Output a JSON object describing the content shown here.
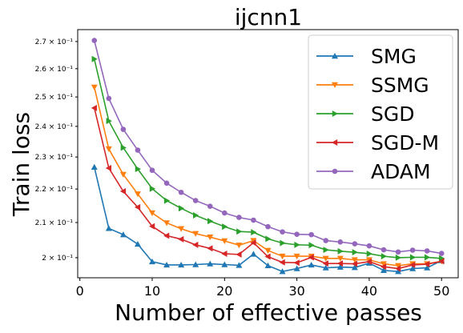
{
  "chart_data": {
    "type": "line",
    "title": "ijcnn1",
    "xlabel": "Number of effective passes",
    "ylabel": "Train loss",
    "yscale": "log",
    "xlim": [
      -0.3,
      52.3
    ],
    "ylim": [
      0.1945,
      0.2745
    ],
    "xticks": [
      0,
      10,
      20,
      30,
      40,
      50
    ],
    "xtick_labels": [
      "0",
      "10",
      "20",
      "30",
      "40",
      "50"
    ],
    "yticks": [
      0.2,
      0.21,
      0.22,
      0.23,
      0.24,
      0.25,
      0.26,
      0.27
    ],
    "ytick_labels": [
      "2 × 10⁻¹",
      "2.1 × 10⁻¹",
      "2.2 × 10⁻¹",
      "2.3 × 10⁻¹",
      "2.4 × 10⁻¹",
      "2.5 × 10⁻¹",
      "2.6 × 10⁻¹",
      "2.7 × 10⁻¹"
    ],
    "grid": false,
    "legend_position": "top-right",
    "x": [
      2,
      4,
      6,
      8,
      10,
      12,
      14,
      16,
      18,
      20,
      22,
      24,
      26,
      28,
      30,
      32,
      34,
      36,
      38,
      40,
      42,
      44,
      46,
      48,
      50
    ],
    "series": [
      {
        "name": "SMG",
        "color": "#1f77b4",
        "marker": "triangle-up",
        "values": [
          0.2268,
          0.2083,
          0.2065,
          0.2038,
          0.1989,
          0.198,
          0.198,
          0.1981,
          0.1983,
          0.1981,
          0.1979,
          0.201,
          0.1978,
          0.1962,
          0.197,
          0.198,
          0.1972,
          0.1974,
          0.1973,
          0.1985,
          0.1965,
          0.1962,
          0.197,
          0.1972,
          0.1992
        ]
      },
      {
        "name": "SSMG",
        "color": "#ff7f0e",
        "marker": "triangle-down",
        "values": [
          0.2534,
          0.2326,
          0.2245,
          0.2185,
          0.2128,
          0.2099,
          0.2082,
          0.2068,
          0.2058,
          0.2047,
          0.2035,
          0.2048,
          0.202,
          0.2004,
          0.2004,
          0.2004,
          0.1998,
          0.1998,
          0.1994,
          0.1994,
          0.1983,
          0.1978,
          0.1983,
          0.1983,
          0.199
        ]
      },
      {
        "name": "SGD",
        "color": "#2ca02c",
        "marker": "triangle-right",
        "values": [
          0.2635,
          0.2418,
          0.233,
          0.2262,
          0.2201,
          0.2165,
          0.2142,
          0.2121,
          0.2104,
          0.2088,
          0.2074,
          0.2072,
          0.2053,
          0.2041,
          0.2036,
          0.2035,
          0.2022,
          0.2018,
          0.2015,
          0.2011,
          0.2004,
          0.2,
          0.2001,
          0.2001,
          0.1998
        ]
      },
      {
        "name": "SGD-M",
        "color": "#d62728",
        "marker": "triangle-left",
        "values": [
          0.2462,
          0.2265,
          0.2193,
          0.2145,
          0.2089,
          0.2062,
          0.2052,
          0.2036,
          0.2026,
          0.2011,
          0.2009,
          0.2042,
          0.2003,
          0.1987,
          0.1986,
          0.2001,
          0.1984,
          0.1984,
          0.1983,
          0.1989,
          0.1975,
          0.197,
          0.198,
          0.1982,
          0.199
        ]
      },
      {
        "name": "ADAM",
        "color": "#9467bd",
        "marker": "circle",
        "values": [
          0.2704,
          0.2495,
          0.239,
          0.2322,
          0.2258,
          0.2218,
          0.219,
          0.2165,
          0.2148,
          0.2128,
          0.2115,
          0.2107,
          0.2088,
          0.2073,
          0.2066,
          0.2065,
          0.2048,
          0.2044,
          0.2039,
          0.2033,
          0.2022,
          0.2016,
          0.2021,
          0.2019,
          0.2012
        ]
      }
    ]
  }
}
